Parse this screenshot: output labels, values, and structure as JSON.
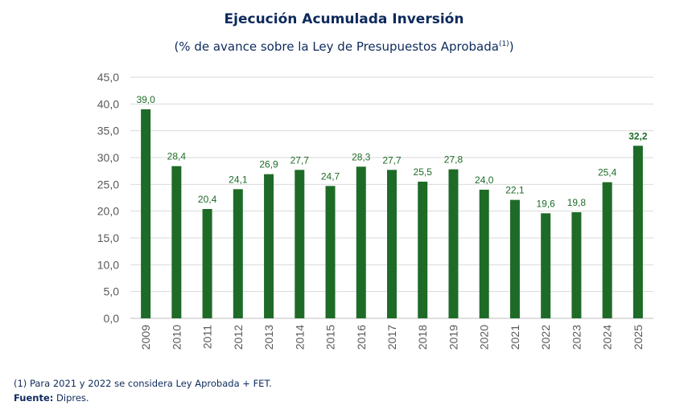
{
  "chart_data": {
    "type": "bar",
    "title": "Ejecución Acumulada Inversión",
    "subtitle": "(% de avance sobre la Ley de Presupuestos Aprobada",
    "subtitle_sup": "(1)",
    "subtitle_close": ")",
    "categories": [
      "2009",
      "2010",
      "2011",
      "2012",
      "2013",
      "2014",
      "2015",
      "2016",
      "2017",
      "2018",
      "2019",
      "2020",
      "2021",
      "2022",
      "2023",
      "2024",
      "2025"
    ],
    "values": [
      39.0,
      28.4,
      20.4,
      24.1,
      26.9,
      27.7,
      24.7,
      28.3,
      27.7,
      25.5,
      27.8,
      24.0,
      22.1,
      19.6,
      19.8,
      25.4,
      32.2
    ],
    "value_labels": [
      "39,0",
      "28,4",
      "20,4",
      "24,1",
      "26,9",
      "27,7",
      "24,7",
      "28,3",
      "27,7",
      "25,5",
      "27,8",
      "24,0",
      "22,1",
      "19,6",
      "19,8",
      "25,4",
      "32,2"
    ],
    "y_ticks": [
      "0,0",
      "5,0",
      "10,0",
      "15,0",
      "20,0",
      "25,0",
      "30,0",
      "35,0",
      "40,0",
      "45,0"
    ],
    "ylim": [
      0,
      45
    ],
    "grid": true,
    "bar_color": "#1e6b28",
    "label_color": "#1e6b28",
    "bold_last_label": true
  },
  "footnote": "(1) Para 2021 y 2022 se considera Ley Aprobada + FET.",
  "source_label": "Fuente:",
  "source_text": " Dipres."
}
